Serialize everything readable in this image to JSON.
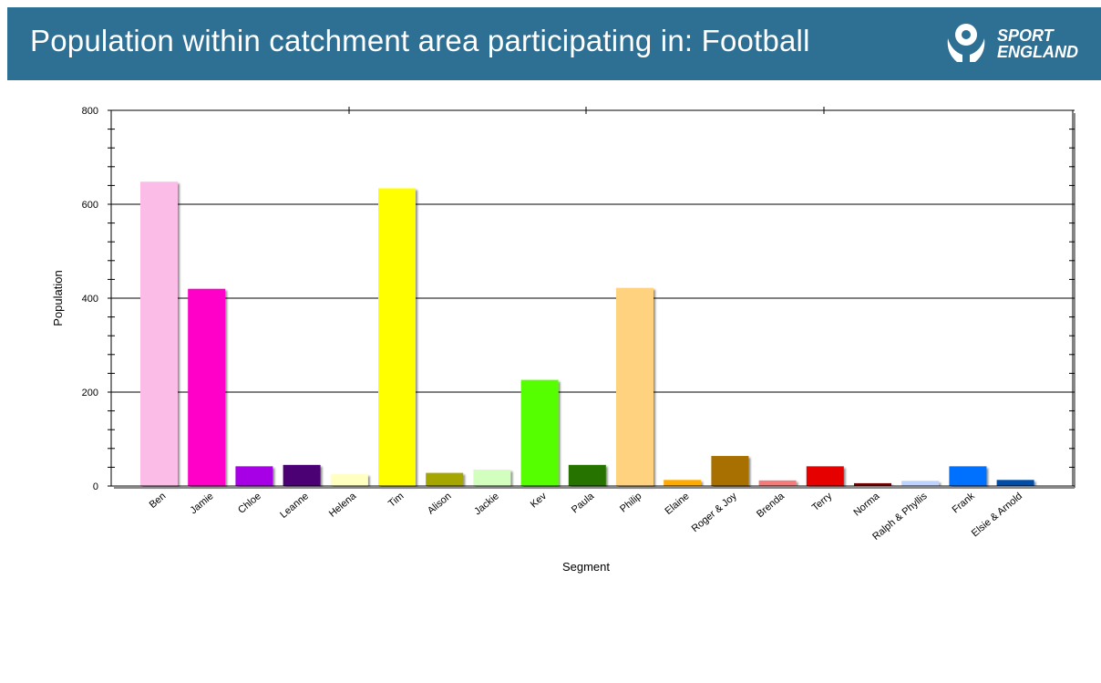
{
  "header": {
    "title": "Population within catchment area participating in: Football",
    "logo_line1": "SPORT",
    "logo_line2": "ENGLAND",
    "background": "#2e7093"
  },
  "chart_data": {
    "type": "bar",
    "xlabel": "Segment",
    "ylabel": "Population",
    "ylim": [
      0,
      800
    ],
    "yticks": [
      0,
      200,
      400,
      600,
      800
    ],
    "grid": "horizontal major lines",
    "categories": [
      "Ben",
      "Jamie",
      "Chloe",
      "Leanne",
      "Helena",
      "Tim",
      "Alison",
      "Jackie",
      "Kev",
      "Paula",
      "Philip",
      "Elaine",
      "Roger & Joy",
      "Brenda",
      "Terry",
      "Norma",
      "Ralph & Phyllis",
      "Frank",
      "Elsie & Arnold"
    ],
    "values": [
      648,
      420,
      42,
      45,
      25,
      634,
      28,
      35,
      226,
      45,
      422,
      13,
      64,
      12,
      42,
      6,
      11,
      42,
      13
    ],
    "colors": [
      "#fbbde7",
      "#ff00c8",
      "#a800e6",
      "#4b0073",
      "#ffffc0",
      "#ffff00",
      "#a6a600",
      "#d2ffbe",
      "#55ff00",
      "#267300",
      "#ffd27f",
      "#ffaa00",
      "#a87000",
      "#f57a7a",
      "#e60000",
      "#730000",
      "#bed2ff",
      "#0070ff",
      "#004da8"
    ]
  }
}
